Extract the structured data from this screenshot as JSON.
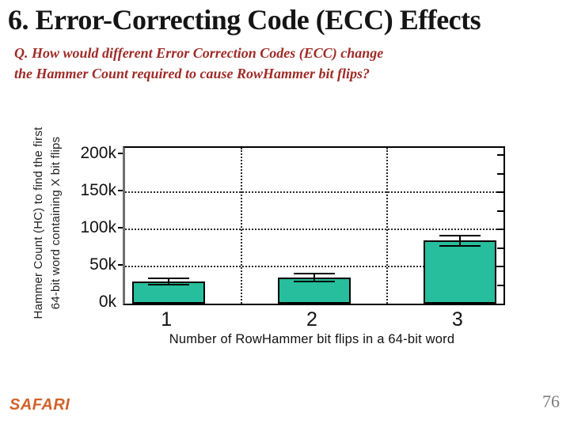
{
  "slide": {
    "title": "6. Error-Correcting Code (ECC) Effects",
    "question": {
      "line1": "Q. How would different Error Correction Codes (ECC) change",
      "line2": "the Hammer Count required to cause RowHammer bit flips?"
    },
    "footer": {
      "logo": "SAFARI",
      "page_number": "76"
    }
  },
  "colors": {
    "title": "#151515",
    "question": "#9e2b26",
    "bar_fill": "#27be9d",
    "bar_border": "#000000",
    "logo": "#d2622a",
    "page_number": "#7b7b7b"
  },
  "chart_data": {
    "type": "bar",
    "categories": [
      "1",
      "2",
      "3"
    ],
    "values": [
      30000,
      35000,
      85000
    ],
    "errors": [
      4000,
      5000,
      7000
    ],
    "xlabel": "Number of RowHammer bit flips in a 64-bit word",
    "ylabel_line1": "Hammer Count (HC) to find the first",
    "ylabel_line2": "64-bit word containing X bit flips",
    "yticks": [
      {
        "value": 0,
        "label": "0k"
      },
      {
        "value": 50000,
        "label": "50k"
      },
      {
        "value": 100000,
        "label": "100k"
      },
      {
        "value": 150000,
        "label": "150k"
      },
      {
        "value": 200000,
        "label": "200k"
      }
    ],
    "y_gridlines": [
      50000,
      100000,
      150000
    ],
    "x_gridlines": [
      1.5,
      2.5
    ],
    "ylim": [
      0,
      210000
    ],
    "xlim": [
      0.7,
      3.3
    ],
    "bar_width": 0.5,
    "error_cap_width": 0.28,
    "minor_tick_step": 25000,
    "grid": "dotted",
    "legend": "none"
  }
}
